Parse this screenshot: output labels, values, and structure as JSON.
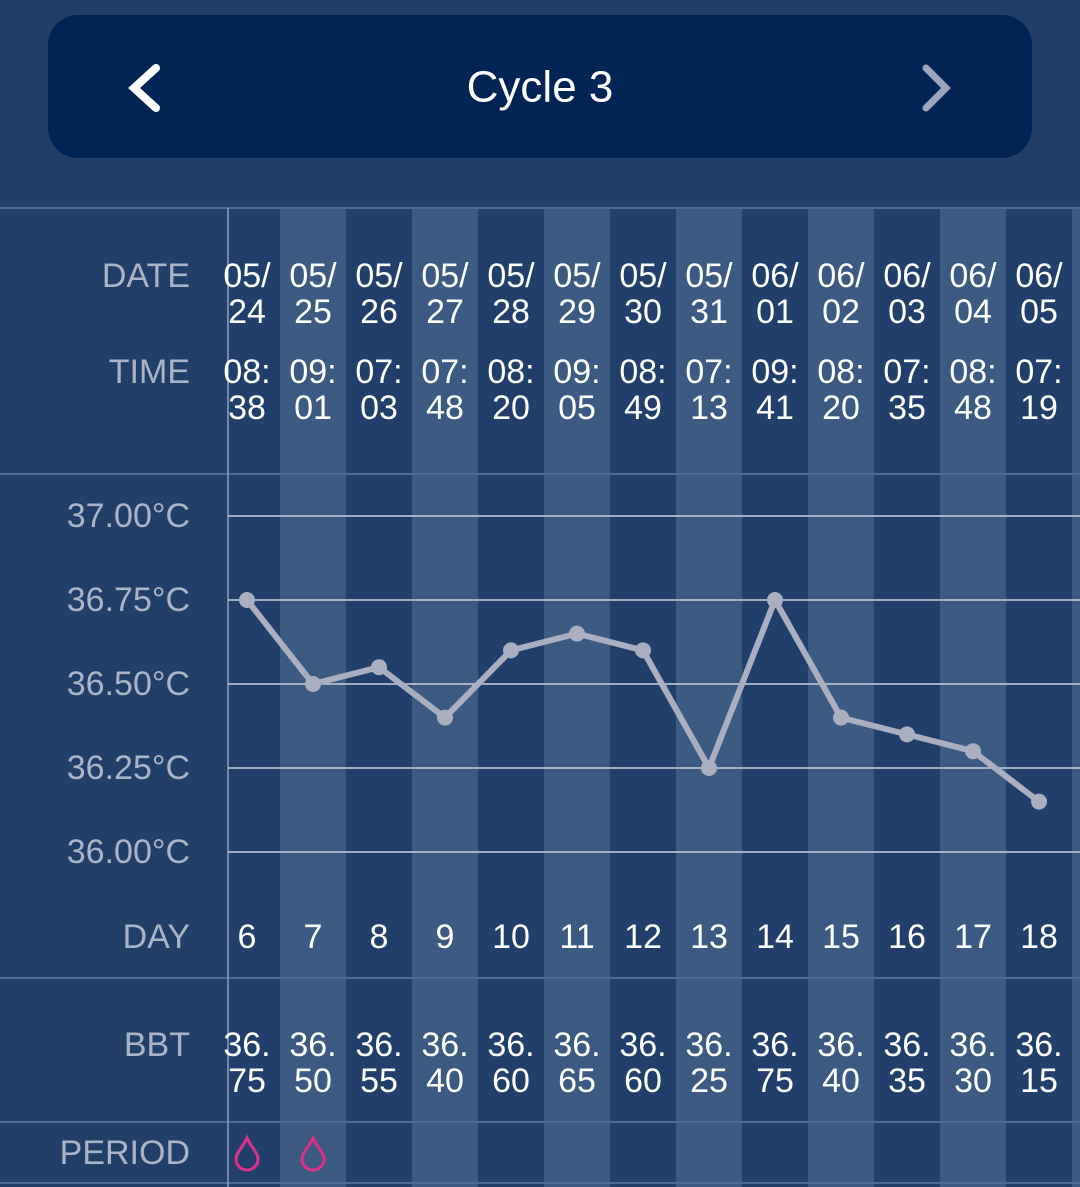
{
  "header": {
    "title": "Cycle 3"
  },
  "row_labels": {
    "date": "DATE",
    "time": "TIME",
    "day": "DAY",
    "bbt": "BBT",
    "period": "PERIOD"
  },
  "chart_data": {
    "type": "line",
    "categories": [
      "05/24",
      "05/25",
      "05/26",
      "05/27",
      "05/28",
      "05/29",
      "05/30",
      "05/31",
      "06/01",
      "06/02",
      "06/03",
      "06/04",
      "06/05"
    ],
    "times": [
      "08:38",
      "09:01",
      "07:03",
      "07:48",
      "08:20",
      "09:05",
      "08:49",
      "07:13",
      "09:41",
      "08:20",
      "07:35",
      "08:48",
      "07:19"
    ],
    "days": [
      6,
      7,
      8,
      9,
      10,
      11,
      12,
      13,
      14,
      15,
      16,
      17,
      18
    ],
    "series": [
      {
        "name": "BBT",
        "color": "#a9afc0",
        "values": [
          36.75,
          36.5,
          36.55,
          36.4,
          36.6,
          36.65,
          36.6,
          36.25,
          36.75,
          36.4,
          36.35,
          36.3,
          36.15
        ],
        "value_labels": [
          "36.75",
          "36.50",
          "36.55",
          "36.40",
          "36.60",
          "36.65",
          "36.60",
          "36.25",
          "36.75",
          "36.40",
          "36.35",
          "36.30",
          "36.15"
        ]
      }
    ],
    "period": [
      true,
      true,
      false,
      false,
      false,
      false,
      false,
      false,
      false,
      false,
      false,
      false,
      false
    ],
    "period_color": "#e0308a",
    "ylim": [
      36,
      37
    ],
    "yticks": [
      {
        "value": 37,
        "label": "37.00°C"
      },
      {
        "value": 36.75,
        "label": "36.75°C"
      },
      {
        "value": 36.5,
        "label": "36.50°C"
      },
      {
        "value": 36.25,
        "label": "36.25°C"
      },
      {
        "value": 36,
        "label": "36.00°C"
      }
    ],
    "grid": true
  }
}
